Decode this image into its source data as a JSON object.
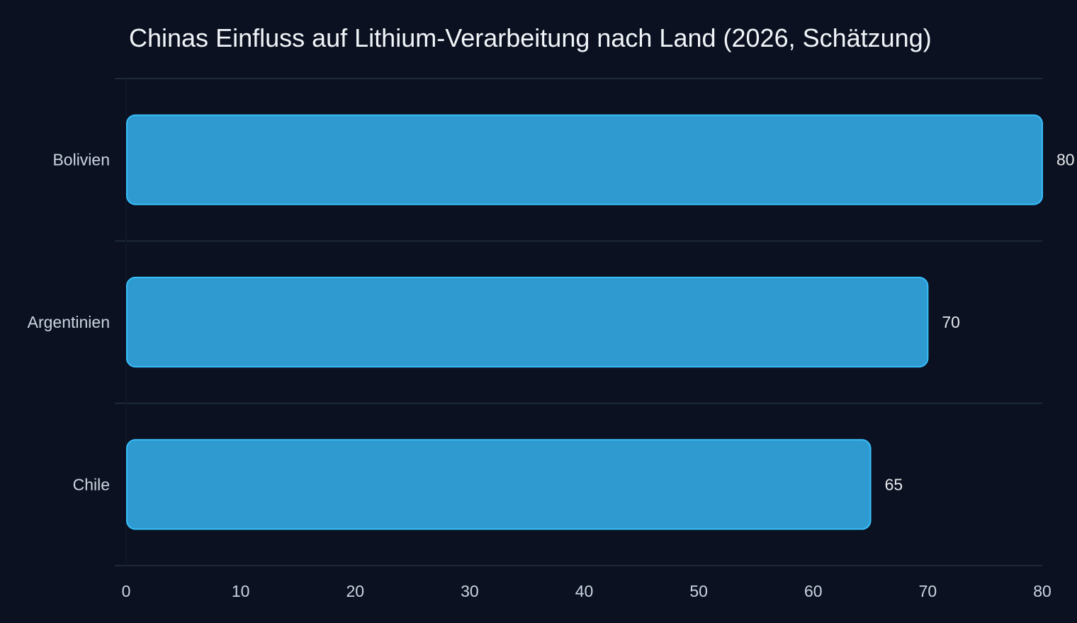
{
  "chart_data": {
    "type": "bar",
    "orientation": "horizontal",
    "title": "Chinas Einfluss auf Lithium-Verarbeitung nach Land (2026, Schätzung)",
    "categories": [
      "Bolivien",
      "Argentinien",
      "Chile"
    ],
    "values": [
      80,
      70,
      65
    ],
    "xlabel": "",
    "ylabel": "",
    "xlim": [
      0,
      80
    ],
    "xticks": [
      0,
      10,
      20,
      30,
      40,
      50,
      60,
      70,
      80
    ],
    "grid": true,
    "legend": "none",
    "colors": {
      "background": "#0b1120",
      "bar_fill": "#2e9ad0",
      "bar_stroke": "#38bdf8",
      "grid": "#1e293b",
      "text": "#cbd5e1",
      "title": "#f1f5f9"
    }
  }
}
